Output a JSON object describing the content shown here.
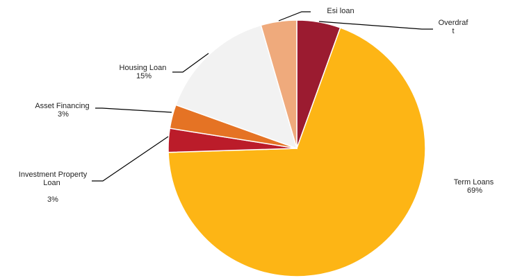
{
  "chart_data": {
    "type": "pie",
    "title": "",
    "start": "12 o'clock",
    "direction": "clockwise",
    "legend": "none",
    "slices": [
      {
        "label": "Overdraf\nt",
        "value": 5.5,
        "display": "",
        "color": "#9B1B30"
      },
      {
        "label": "Term Loans",
        "value": 69,
        "display": "69%",
        "color": "#FDB515"
      },
      {
        "label": "Investment Property\nLoan",
        "value": 3,
        "display": "3%",
        "color": "#BB1C2A"
      },
      {
        "label": "Asset Financing",
        "value": 3,
        "display": "3%",
        "color": "#E57324"
      },
      {
        "label": "Housing Loan",
        "value": 15,
        "display": "15%",
        "color": "#F2F2F2"
      },
      {
        "label": "Esi loan",
        "value": 4.5,
        "display": "",
        "color": "#EFAA7C"
      }
    ]
  }
}
